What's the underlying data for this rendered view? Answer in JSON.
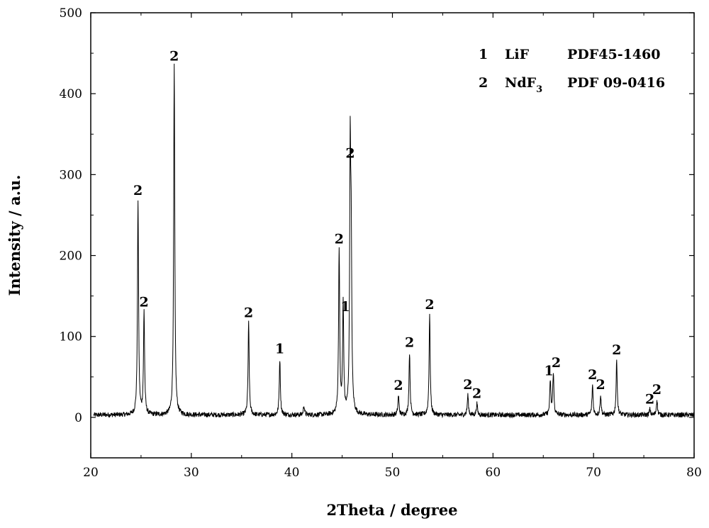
{
  "chart_data": {
    "type": "line",
    "title": "",
    "xlabel": "2Theta / degree",
    "ylabel": "Intensity / a.u.",
    "xlim": [
      20,
      80
    ],
    "ylim": [
      -50,
      500
    ],
    "x_ticks": [
      20,
      30,
      40,
      50,
      60,
      70,
      80
    ],
    "y_ticks": [
      0,
      100,
      200,
      300,
      400,
      500
    ],
    "baseline": 3,
    "peaks": [
      {
        "x": 24.7,
        "y": 268,
        "label": "2"
      },
      {
        "x": 25.3,
        "y": 130,
        "label": "2"
      },
      {
        "x": 28.3,
        "y": 434,
        "label": "2"
      },
      {
        "x": 35.7,
        "y": 117,
        "label": "2"
      },
      {
        "x": 38.8,
        "y": 72,
        "label": "1"
      },
      {
        "x": 41.2,
        "y": 15,
        "label": ""
      },
      {
        "x": 44.7,
        "y": 208,
        "label": "2"
      },
      {
        "x": 45.1,
        "y": 140,
        "label": "1"
      },
      {
        "x": 45.8,
        "y": 314,
        "label": "2"
      },
      {
        "x": 45.9,
        "y": 185,
        "label": ""
      },
      {
        "x": 50.6,
        "y": 27,
        "label": "2"
      },
      {
        "x": 51.7,
        "y": 80,
        "label": "2"
      },
      {
        "x": 53.7,
        "y": 127,
        "label": "2"
      },
      {
        "x": 57.5,
        "y": 28,
        "label": "2"
      },
      {
        "x": 58.4,
        "y": 17,
        "label": "2"
      },
      {
        "x": 65.7,
        "y": 45,
        "label": "1"
      },
      {
        "x": 66.0,
        "y": 55,
        "label": "2"
      },
      {
        "x": 69.9,
        "y": 40,
        "label": "2"
      },
      {
        "x": 70.7,
        "y": 28,
        "label": "2"
      },
      {
        "x": 72.3,
        "y": 71,
        "label": "2"
      },
      {
        "x": 75.6,
        "y": 10,
        "label": "2"
      },
      {
        "x": 76.3,
        "y": 22,
        "label": "2"
      }
    ],
    "legend": {
      "position": "top-right",
      "entries": [
        {
          "num": "1",
          "phase": "LiF",
          "phase_sub": "",
          "pdf": "PDF45-1460"
        },
        {
          "num": "2",
          "phase": "NdF",
          "phase_sub": "3",
          "pdf": "PDF 09-0416"
        }
      ]
    },
    "line_color": "#000000",
    "grid": false
  }
}
